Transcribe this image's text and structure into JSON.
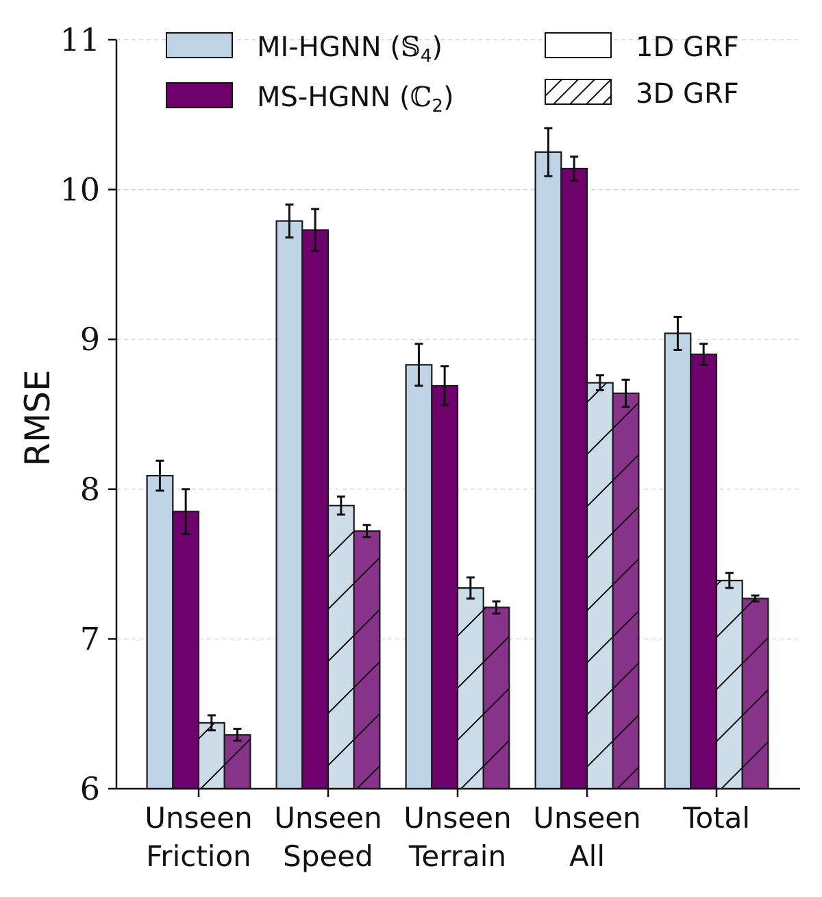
{
  "chart_data": {
    "type": "bar",
    "ylabel": "RMSE",
    "xlabel": "",
    "ylim": [
      6,
      11
    ],
    "yticks": [
      "6",
      "7",
      "8",
      "9",
      "10",
      "11"
    ],
    "grid": "horizontal dashed",
    "legend_placement": "top",
    "categories": [
      [
        "Unseen",
        "Friction"
      ],
      [
        "Unseen",
        "Speed"
      ],
      [
        "Unseen",
        "Terrain"
      ],
      [
        "Unseen",
        "All"
      ],
      [
        "Total"
      ]
    ],
    "series": [
      {
        "name": "MI-HGNN (𝕊₄)",
        "grf": "1D GRF",
        "color": "#bfd3e6",
        "hatch": false,
        "values": [
          8.09,
          9.79,
          8.83,
          10.25,
          9.04
        ],
        "errors": [
          0.1,
          0.11,
          0.14,
          0.16,
          0.11
        ]
      },
      {
        "name": "MS-HGNN (ℂ₂)",
        "grf": "1D GRF",
        "color": "#6e016b",
        "hatch": false,
        "values": [
          7.85,
          9.73,
          8.69,
          10.14,
          8.9
        ],
        "errors": [
          0.15,
          0.14,
          0.13,
          0.08,
          0.07
        ]
      },
      {
        "name": "MI-HGNN (𝕊₄)",
        "grf": "3D GRF",
        "color": "#cddce9",
        "hatch": true,
        "values": [
          6.44,
          7.89,
          7.34,
          8.71,
          7.39
        ],
        "errors": [
          0.05,
          0.06,
          0.07,
          0.05,
          0.05
        ]
      },
      {
        "name": "MS-HGNN (ℂ₂)",
        "grf": "3D GRF",
        "color": "#88338a",
        "hatch": true,
        "values": [
          6.36,
          7.72,
          7.21,
          8.64,
          7.27
        ],
        "errors": [
          0.04,
          0.04,
          0.04,
          0.09,
          0.02
        ]
      }
    ],
    "legend": {
      "models": [
        {
          "label_main": "MI-HGNN (",
          "label_sym": "𝕊",
          "label_sub": "4",
          "label_close": ")",
          "color": "#bfd3e6"
        },
        {
          "label_main": "MS-HGNN (",
          "label_sym": "ℂ",
          "label_sub": "2",
          "label_close": ")",
          "color": "#6e016b"
        }
      ],
      "grf": [
        {
          "label": "1D GRF",
          "hatch": false
        },
        {
          "label": "3D GRF",
          "hatch": true
        }
      ]
    }
  }
}
